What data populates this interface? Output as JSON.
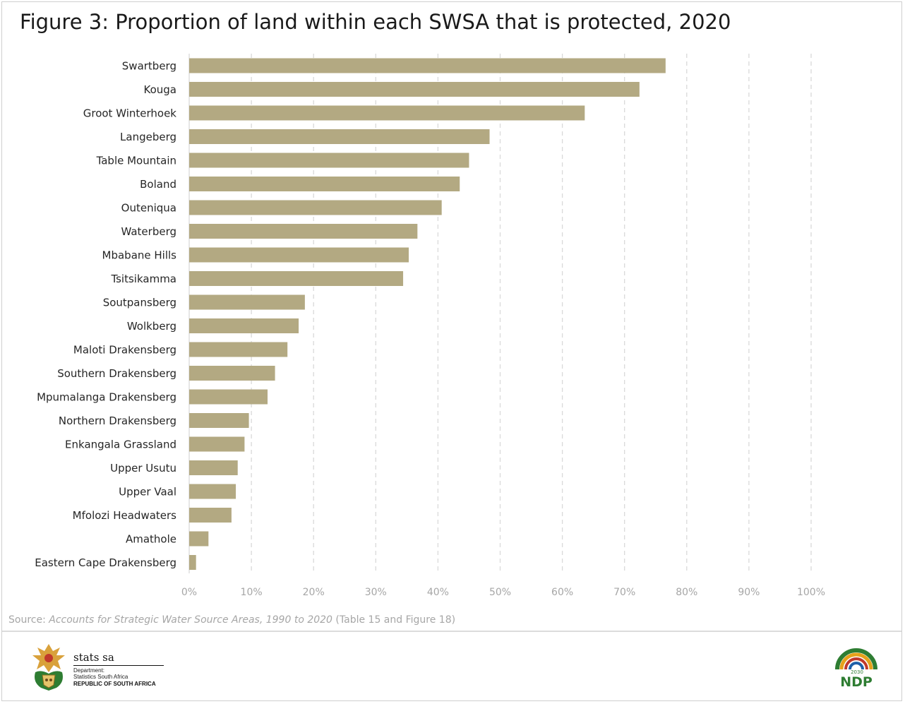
{
  "title": "Figure 3: Proportion of land within each SWSA that is protected, 2020",
  "chart_data": {
    "type": "bar",
    "orientation": "horizontal",
    "categories": [
      "Swartberg",
      "Kouga",
      "Groot Winterhoek",
      "Langeberg",
      "Table Mountain",
      "Boland",
      "Outeniqua",
      "Waterberg",
      "Mbabane Hills",
      "Tsitsikamma",
      "Soutpansberg",
      "Wolkberg",
      "Maloti Drakensberg",
      "Southern Drakensberg",
      "Mpumalanga Drakensberg",
      "Northern Drakensberg",
      "Enkangala Grassland",
      "Upper Usutu",
      "Upper Vaal",
      "Mfolozi Headwaters",
      "Amathole",
      "Eastern Cape Drakensberg"
    ],
    "values": [
      76.6,
      72.4,
      63.6,
      48.3,
      45.0,
      43.5,
      40.6,
      36.7,
      35.3,
      34.4,
      18.6,
      17.6,
      15.8,
      13.8,
      12.6,
      9.6,
      8.9,
      7.8,
      7.5,
      6.8,
      3.1,
      1.1
    ],
    "unit": "%",
    "xlim": [
      0,
      100
    ],
    "xticks": [
      "0%",
      "10%",
      "20%",
      "30%",
      "40%",
      "50%",
      "60%",
      "70%",
      "80%",
      "90%",
      "100%"
    ],
    "grid": "vertical dashed",
    "legend": "none",
    "bar_color": "#b3a982",
    "grid_color": "#d9d9d9"
  },
  "source": {
    "prefix": "Source: ",
    "title": "Accounts for Strategic Water Source Areas, 1990 to 2020",
    "suffix": " (Table 15 and Figure 18)"
  },
  "footer": {
    "stats_name": "stats sa",
    "dept_line1": "Department:",
    "dept_line2": "Statistics South Africa",
    "country": "REPUBLIC OF SOUTH AFRICA",
    "ndp_year": "2030",
    "ndp_text": "NDP"
  }
}
